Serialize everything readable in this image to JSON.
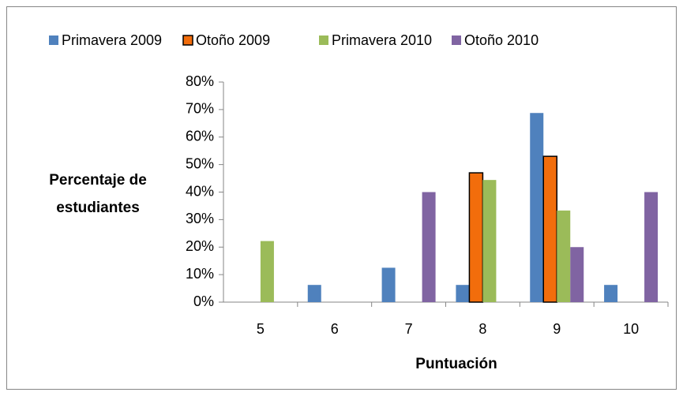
{
  "chart_data": {
    "type": "bar",
    "y_label": [
      "Percentaje de",
      "estudiantes"
    ],
    "x_label": "Puntuación",
    "categories": [
      "5",
      "6",
      "7",
      "8",
      "9",
      "10"
    ],
    "series": [
      {
        "name": "Primavera 2009",
        "color": "#4f81bd",
        "values": [
          0,
          6.25,
          12.5,
          6.25,
          68.75,
          6.25
        ]
      },
      {
        "name": "Otoño 2009",
        "color": "#f26d0c",
        "outline": "#000000",
        "values": [
          0,
          0,
          0,
          47,
          53,
          0
        ]
      },
      {
        "name": "Primavera 2010",
        "color": "#9bbb59",
        "values": [
          22.2,
          0,
          0,
          44.4,
          33.3,
          0
        ]
      },
      {
        "name": "Otoño 2010",
        "color": "#8064a2",
        "values": [
          0,
          0,
          40,
          0,
          20,
          40
        ]
      }
    ],
    "ylim": [
      0,
      80
    ],
    "yticks": [
      {
        "value": 0,
        "label": "0%"
      },
      {
        "value": 10,
        "label": "10%"
      },
      {
        "value": 20,
        "label": "20%"
      },
      {
        "value": 30,
        "label": "30%"
      },
      {
        "value": 40,
        "label": "40%"
      },
      {
        "value": 50,
        "label": "50%"
      },
      {
        "value": 60,
        "label": "60%"
      },
      {
        "value": 70,
        "label": "70%"
      },
      {
        "value": 80,
        "label": "80%"
      }
    ],
    "legend": "top",
    "grid": false
  }
}
